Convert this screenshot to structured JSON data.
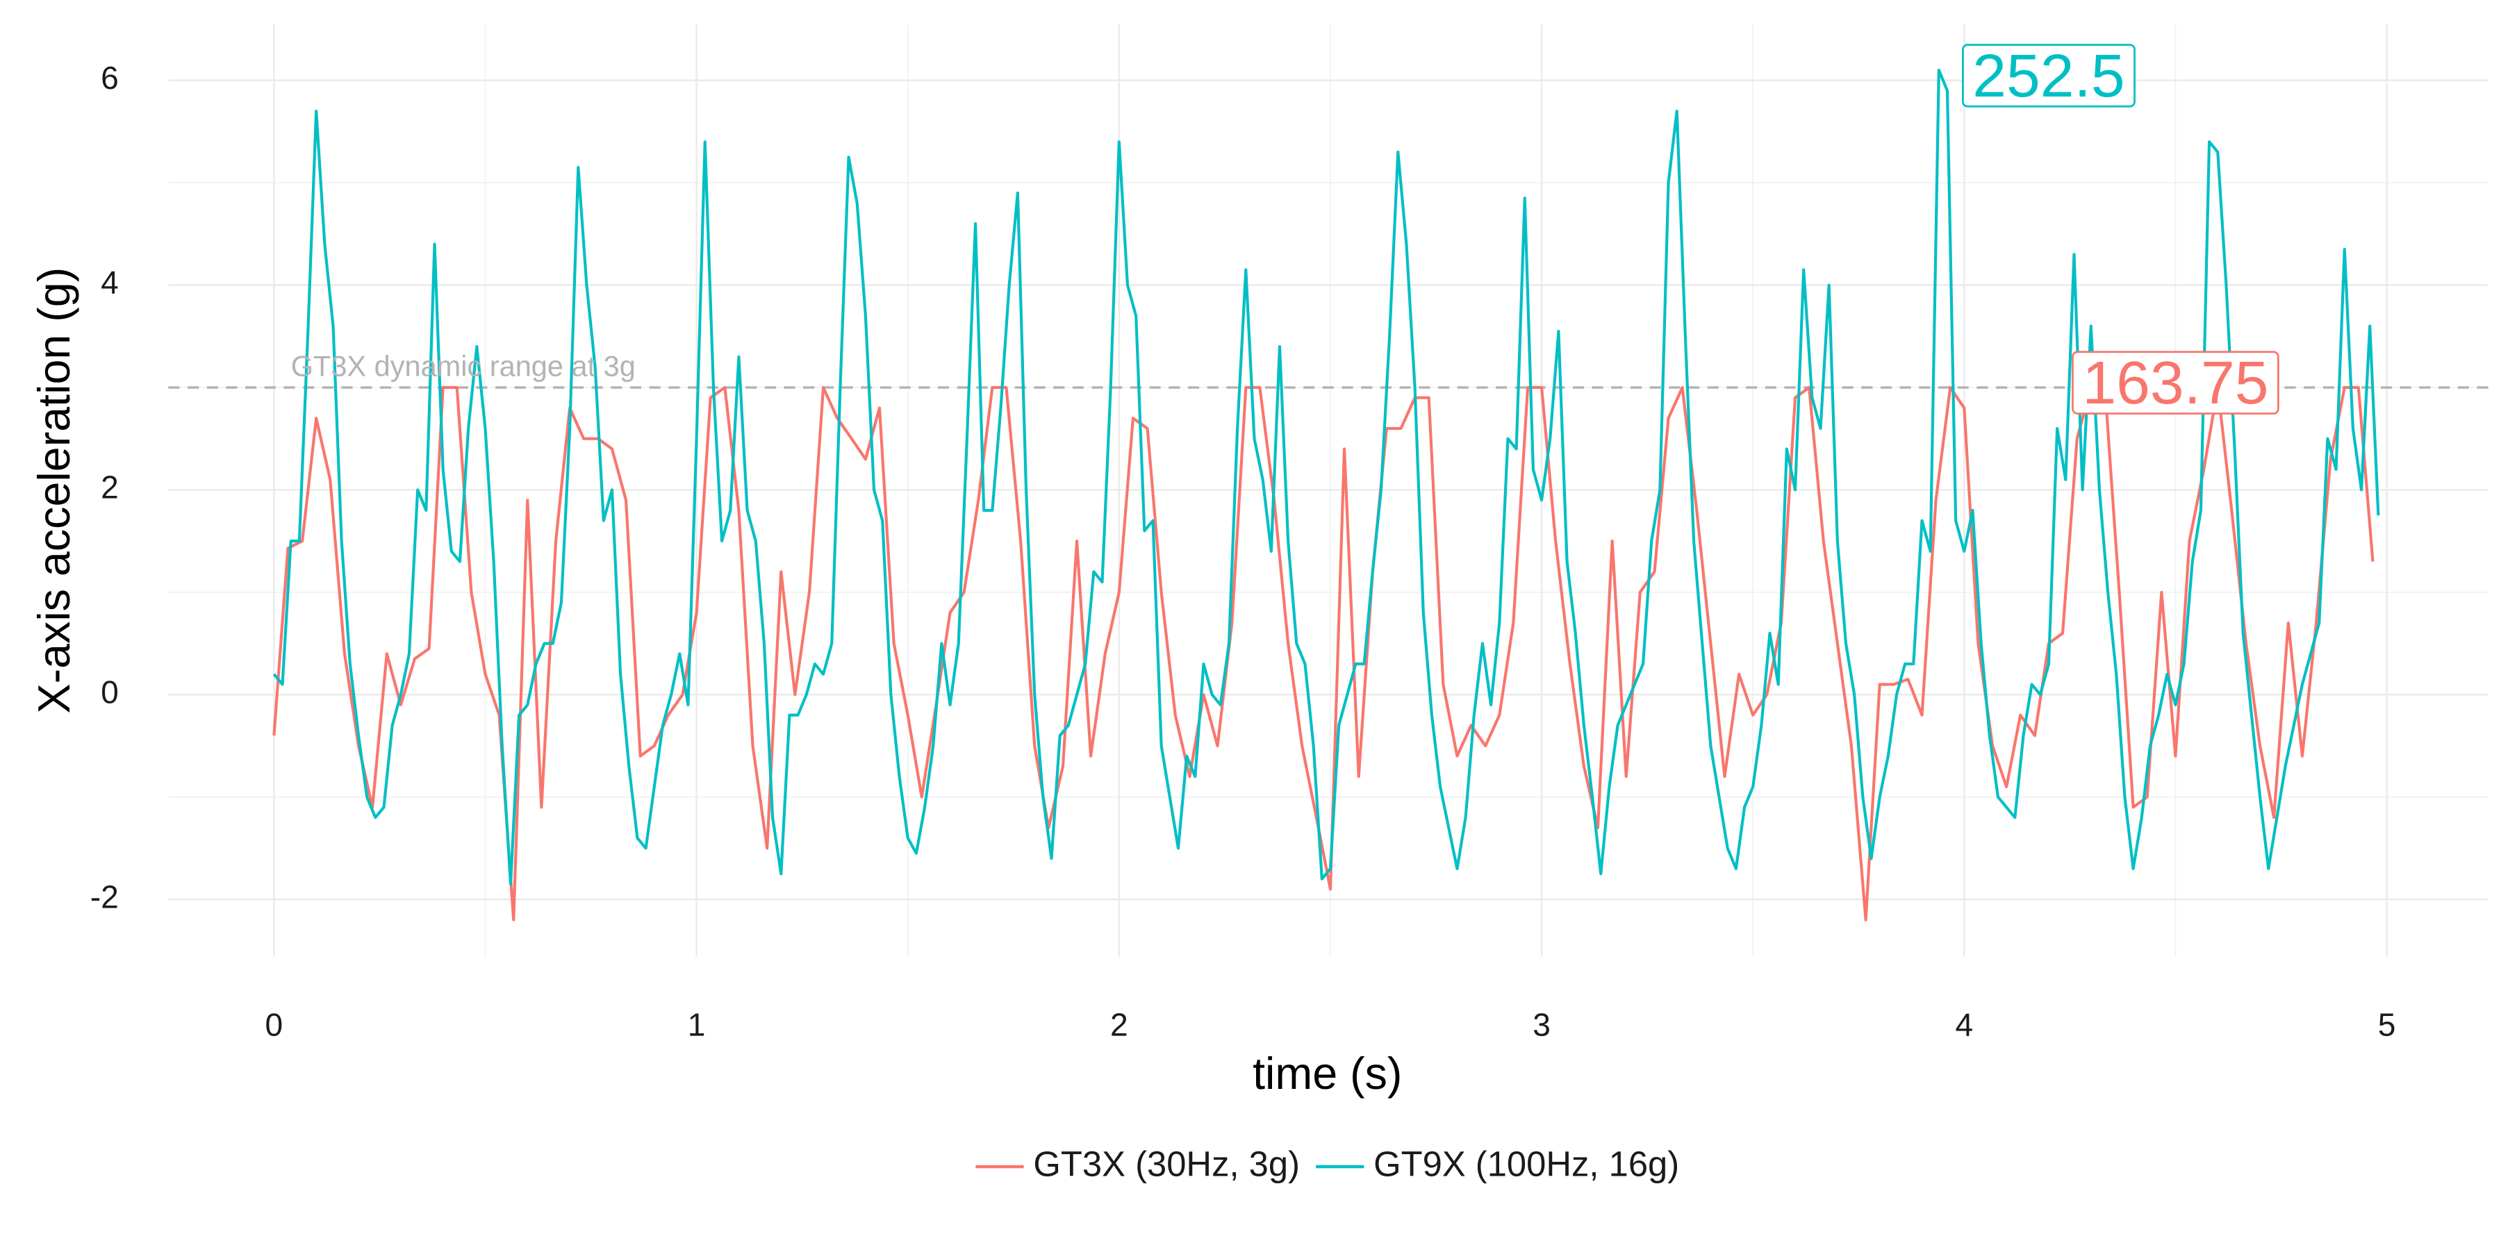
{
  "chart_data": {
    "type": "line",
    "x_label": "time (s)",
    "y_label": "X-axis acceleration (g)",
    "xlim": [
      -0.25,
      5.24
    ],
    "ylim": [
      -2.56,
      6.55
    ],
    "xticks": [
      0,
      1,
      2,
      3,
      4,
      5
    ],
    "yticks": [
      -2,
      0,
      2,
      4,
      6
    ],
    "minor_xticks": [
      0.5,
      1.5,
      2.5,
      3.5,
      4.5
    ],
    "minor_yticks": [
      -1,
      1,
      3,
      5
    ],
    "grid": true,
    "legend": "bottom",
    "hline": {
      "value": 3,
      "label": "GT3X dynamic range at 3g",
      "color": "#b3b3b3",
      "label_x": 0.04
    },
    "annotations": [
      {
        "text": "252.5",
        "x": 4.2,
        "y": 6,
        "color": "#00BFC4"
      },
      {
        "text": "163.75",
        "x": 4.5,
        "y": 3,
        "color": "#F8766D"
      }
    ],
    "series": [
      {
        "name": "GT3X (30Hz, 3g)",
        "color": "#F8766D",
        "x": [
          0,
          0.033,
          0.067,
          0.1,
          0.133,
          0.167,
          0.2,
          0.233,
          0.267,
          0.3,
          0.333,
          0.367,
          0.4,
          0.433,
          0.467,
          0.5,
          0.533,
          0.567,
          0.6,
          0.633,
          0.667,
          0.7,
          0.733,
          0.767,
          0.8,
          0.833,
          0.867,
          0.9,
          0.933,
          0.967,
          1,
          1.033,
          1.067,
          1.1,
          1.133,
          1.167,
          1.2,
          1.233,
          1.267,
          1.3,
          1.333,
          1.367,
          1.4,
          1.433,
          1.467,
          1.5,
          1.533,
          1.567,
          1.6,
          1.633,
          1.667,
          1.7,
          1.733,
          1.767,
          1.8,
          1.833,
          1.867,
          1.9,
          1.933,
          1.967,
          2,
          2.033,
          2.067,
          2.1,
          2.133,
          2.167,
          2.2,
          2.233,
          2.267,
          2.3,
          2.333,
          2.367,
          2.4,
          2.433,
          2.467,
          2.5,
          2.533,
          2.567,
          2.6,
          2.633,
          2.667,
          2.7,
          2.733,
          2.767,
          2.8,
          2.833,
          2.867,
          2.9,
          2.933,
          2.967,
          3,
          3.033,
          3.067,
          3.1,
          3.133,
          3.167,
          3.2,
          3.233,
          3.267,
          3.3,
          3.333,
          3.367,
          3.4,
          3.433,
          3.467,
          3.5,
          3.533,
          3.567,
          3.6,
          3.633,
          3.667,
          3.7,
          3.733,
          3.767,
          3.8,
          3.833,
          3.867,
          3.9,
          3.933,
          3.967,
          4,
          4.033,
          4.067,
          4.1,
          4.133,
          4.167,
          4.2,
          4.233,
          4.267,
          4.3,
          4.333,
          4.367,
          4.4,
          4.433,
          4.467,
          4.5,
          4.533,
          4.567,
          4.6,
          4.633,
          4.667,
          4.7,
          4.733,
          4.767,
          4.8,
          4.833,
          4.867,
          4.9,
          4.933,
          4.967
        ],
        "values": [
          -0.4,
          1.43,
          1.5,
          2.7,
          2.1,
          0.4,
          -0.5,
          -1.1,
          0.4,
          -0.1,
          0.35,
          0.45,
          3.0,
          3.0,
          1.0,
          0.2,
          -0.2,
          -2.2,
          1.9,
          -1.1,
          1.5,
          2.8,
          2.5,
          2.5,
          2.4,
          1.9,
          -0.6,
          -0.5,
          -0.2,
          0.0,
          0.8,
          2.9,
          3.0,
          1.8,
          -0.5,
          -1.5,
          1.2,
          0.0,
          1.0,
          3.0,
          2.7,
          2.5,
          2.3,
          2.8,
          0.5,
          -0.2,
          -1.0,
          -0.1,
          0.8,
          1.0,
          1.9,
          3.0,
          3.0,
          1.5,
          -0.5,
          -1.3,
          -0.7,
          1.5,
          -0.6,
          0.4,
          1.0,
          2.7,
          2.6,
          1.0,
          -0.2,
          -0.8,
          0.0,
          -0.5,
          0.7,
          3.0,
          3.0,
          1.9,
          0.5,
          -0.5,
          -1.2,
          -1.9,
          2.4,
          -0.8,
          1.2,
          2.6,
          2.6,
          2.9,
          2.9,
          0.1,
          -0.6,
          -0.3,
          -0.5,
          -0.2,
          0.7,
          3.0,
          3.0,
          1.5,
          0.3,
          -0.7,
          -1.3,
          1.5,
          -0.8,
          1.0,
          1.2,
          2.7,
          3.0,
          1.8,
          0.5,
          -0.8,
          0.2,
          -0.2,
          0.0,
          0.7,
          2.9,
          3.0,
          1.5,
          0.5,
          -0.5,
          -2.2,
          0.1,
          0.1,
          0.15,
          -0.2,
          1.9,
          3.0,
          2.8,
          0.5,
          -0.5,
          -0.9,
          -0.2,
          -0.4,
          0.5,
          0.6,
          2.5,
          3.0,
          3.0,
          1.0,
          -1.1,
          -1.0,
          1.0,
          -0.6,
          1.5,
          2.2,
          3.0,
          1.8,
          0.5,
          -0.5,
          -1.2,
          0.7,
          -0.6,
          0.7,
          2.3,
          3.0,
          3.0,
          1.3
        ]
      },
      {
        "name": "GT9X (100Hz, 16g)",
        "color": "#00BFC4",
        "x": [
          0,
          0.02,
          0.04,
          0.06,
          0.08,
          0.1,
          0.12,
          0.14,
          0.16,
          0.18,
          0.2,
          0.22,
          0.24,
          0.26,
          0.28,
          0.3,
          0.32,
          0.34,
          0.36,
          0.38,
          0.4,
          0.42,
          0.44,
          0.46,
          0.48,
          0.5,
          0.52,
          0.54,
          0.56,
          0.58,
          0.6,
          0.62,
          0.64,
          0.66,
          0.68,
          0.7,
          0.72,
          0.74,
          0.76,
          0.78,
          0.8,
          0.82,
          0.84,
          0.86,
          0.88,
          0.9,
          0.92,
          0.94,
          0.96,
          0.98,
          1,
          1.02,
          1.04,
          1.06,
          1.08,
          1.1,
          1.12,
          1.14,
          1.16,
          1.18,
          1.2,
          1.22,
          1.24,
          1.26,
          1.28,
          1.3,
          1.32,
          1.34,
          1.36,
          1.38,
          1.4,
          1.42,
          1.44,
          1.46,
          1.48,
          1.5,
          1.52,
          1.54,
          1.56,
          1.58,
          1.6,
          1.62,
          1.64,
          1.66,
          1.68,
          1.7,
          1.72,
          1.74,
          1.76,
          1.78,
          1.8,
          1.82,
          1.84,
          1.86,
          1.88,
          1.9,
          1.92,
          1.94,
          1.96,
          1.98,
          2,
          2.02,
          2.04,
          2.06,
          2.08,
          2.1,
          2.12,
          2.14,
          2.16,
          2.18,
          2.2,
          2.22,
          2.24,
          2.26,
          2.28,
          2.3,
          2.32,
          2.34,
          2.36,
          2.38,
          2.4,
          2.42,
          2.44,
          2.46,
          2.48,
          2.5,
          2.52,
          2.54,
          2.56,
          2.58,
          2.6,
          2.62,
          2.64,
          2.66,
          2.68,
          2.7,
          2.72,
          2.74,
          2.76,
          2.78,
          2.8,
          2.82,
          2.84,
          2.86,
          2.88,
          2.9,
          2.92,
          2.94,
          2.96,
          2.98,
          3,
          3.02,
          3.04,
          3.06,
          3.08,
          3.1,
          3.12,
          3.14,
          3.16,
          3.18,
          3.2,
          3.22,
          3.24,
          3.26,
          3.28,
          3.3,
          3.32,
          3.34,
          3.36,
          3.38,
          3.4,
          3.42,
          3.44,
          3.46,
          3.48,
          3.5,
          3.52,
          3.54,
          3.56,
          3.58,
          3.6,
          3.62,
          3.64,
          3.66,
          3.68,
          3.7,
          3.72,
          3.74,
          3.76,
          3.78,
          3.8,
          3.82,
          3.84,
          3.86,
          3.88,
          3.9,
          3.92,
          3.94,
          3.96,
          3.98,
          4,
          4.02,
          4.04,
          4.06,
          4.08,
          4.1,
          4.12,
          4.14,
          4.16,
          4.18,
          4.2,
          4.22,
          4.24,
          4.26,
          4.28,
          4.3,
          4.32,
          4.34,
          4.36,
          4.38,
          4.4,
          4.42,
          4.44,
          4.46,
          4.48,
          4.5,
          4.52,
          4.54,
          4.56,
          4.58,
          4.6,
          4.62,
          4.64,
          4.66,
          4.68,
          4.7,
          4.72,
          4.74,
          4.76,
          4.78,
          4.8,
          4.82,
          4.84,
          4.86,
          4.88,
          4.9,
          4.92,
          4.94,
          4.96,
          4.98
        ],
        "values": [
          0.2,
          0.1,
          1.5,
          1.5,
          3.5,
          5.7,
          4.4,
          3.6,
          1.5,
          0.3,
          -0.4,
          -1.0,
          -1.2,
          -1.1,
          -0.3,
          0.0,
          0.4,
          2.0,
          1.8,
          4.4,
          2.2,
          1.4,
          1.3,
          2.6,
          3.4,
          2.6,
          1.3,
          -0.5,
          -1.85,
          -0.2,
          -0.1,
          0.3,
          0.5,
          0.5,
          0.9,
          2.6,
          5.15,
          4.0,
          3.2,
          1.7,
          2.0,
          0.2,
          -0.7,
          -1.4,
          -1.5,
          -0.9,
          -0.3,
          0.0,
          0.4,
          -0.1,
          2.5,
          5.4,
          3.0,
          1.5,
          1.8,
          3.3,
          1.8,
          1.5,
          0.5,
          -1.2,
          -1.75,
          -0.2,
          -0.2,
          0.0,
          0.3,
          0.2,
          0.5,
          3.0,
          5.25,
          4.8,
          3.7,
          2.0,
          1.7,
          0.0,
          -0.8,
          -1.4,
          -1.55,
          -1.1,
          -0.5,
          0.5,
          -0.1,
          0.5,
          2.5,
          4.6,
          1.8,
          1.8,
          2.8,
          4.0,
          4.9,
          2.0,
          0.0,
          -1.0,
          -1.6,
          -0.4,
          -0.3,
          0.0,
          0.3,
          1.2,
          1.1,
          3.0,
          5.4,
          4.0,
          3.7,
          1.6,
          1.7,
          -0.5,
          -1.0,
          -1.5,
          -0.6,
          -0.8,
          0.3,
          0.0,
          -0.1,
          0.5,
          2.6,
          4.15,
          2.5,
          2.1,
          1.4,
          3.4,
          1.5,
          0.5,
          0.3,
          -0.5,
          -1.8,
          -1.7,
          -0.3,
          0.0,
          0.3,
          0.3,
          1.2,
          2.0,
          3.5,
          5.3,
          4.4,
          3.0,
          0.8,
          -0.2,
          -0.9,
          -1.3,
          -1.7,
          -1.2,
          -0.2,
          0.5,
          -0.1,
          0.7,
          2.5,
          2.4,
          4.85,
          2.2,
          1.9,
          2.5,
          3.55,
          1.3,
          0.6,
          -0.3,
          -1.0,
          -1.75,
          -0.9,
          -0.3,
          -0.1,
          0.1,
          0.3,
          1.5,
          2.0,
          5.0,
          5.7,
          3.5,
          1.5,
          0.5,
          -0.5,
          -1.0,
          -1.5,
          -1.7,
          -1.1,
          -0.9,
          -0.3,
          0.6,
          0.1,
          2.4,
          2.0,
          4.15,
          2.9,
          2.6,
          4.0,
          1.5,
          0.5,
          0.0,
          -1.0,
          -1.6,
          -1.0,
          -0.6,
          0.0,
          0.3,
          0.3,
          1.7,
          1.4,
          6.1,
          5.9,
          1.7,
          1.4,
          1.8,
          0.5,
          -0.4,
          -1.0,
          -1.1,
          -1.2,
          -0.4,
          0.1,
          0.0,
          0.3,
          2.6,
          2.1,
          4.3,
          2.0,
          3.6,
          2.0,
          1.0,
          0.2,
          -1.0,
          -1.7,
          -1.2,
          -0.5,
          -0.2,
          0.2,
          -0.1,
          0.3,
          1.3,
          1.8,
          5.4,
          5.3,
          4.0,
          2.4,
          0.6,
          -0.2,
          -1.0,
          -1.7,
          -1.2,
          -0.7,
          -0.3,
          0.1,
          0.4,
          0.7,
          2.5,
          2.2,
          4.35,
          2.6,
          2.0,
          3.6,
          1.75
        ]
      }
    ]
  }
}
